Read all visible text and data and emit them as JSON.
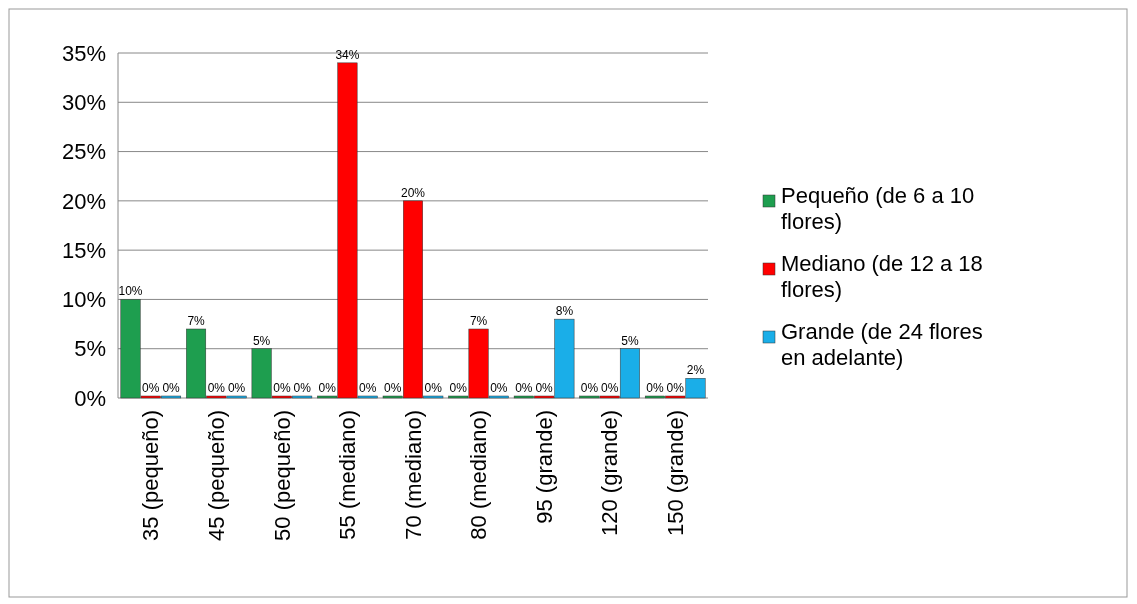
{
  "chart_data": {
    "type": "bar",
    "categories": [
      "35 (pequeño)",
      "45 (pequeño)",
      "50 (pequeño)",
      "55 (mediano)",
      "70 (mediano)",
      "80 (mediano)",
      "95 (grande)",
      "120 (grande)",
      "150 (grande)"
    ],
    "series": [
      {
        "name": "Pequeño (de 6 a 10 flores)",
        "color": "#1e9e4f",
        "values": [
          10,
          7,
          5,
          0,
          0,
          0,
          0,
          0,
          0
        ],
        "value_labels": [
          "10%",
          "7%",
          "5%",
          "0%",
          "0%",
          "0%",
          "0%",
          "0%",
          "0%"
        ]
      },
      {
        "name": "Mediano (de 12 a 18 flores)",
        "color": "#ff0000",
        "values": [
          0,
          0,
          0,
          34,
          20,
          7,
          0,
          0,
          0
        ],
        "value_labels": [
          "0%",
          "0%",
          "0%",
          "34%",
          "20%",
          "7%",
          "0%",
          "0%",
          "0%"
        ]
      },
      {
        "name": "Grande (de 24 flores en adelante)",
        "color": "#1aaee8",
        "values": [
          0,
          0,
          0,
          0,
          0,
          0,
          8,
          5,
          2
        ],
        "value_labels": [
          "0%",
          "0%",
          "0%",
          "0%",
          "0%",
          "0%",
          "8%",
          "5%",
          "2%"
        ]
      }
    ],
    "ylim": [
      0,
      35
    ],
    "yticks": [
      {
        "value": 0,
        "label": "0%"
      },
      {
        "value": 5,
        "label": "5%"
      },
      {
        "value": 10,
        "label": "10%"
      },
      {
        "value": 15,
        "label": "15%"
      },
      {
        "value": 20,
        "label": "20%"
      },
      {
        "value": 25,
        "label": "25%"
      },
      {
        "value": 30,
        "label": "30%"
      },
      {
        "value": 35,
        "label": "35%"
      }
    ],
    "grid": "y",
    "legend": "right"
  }
}
